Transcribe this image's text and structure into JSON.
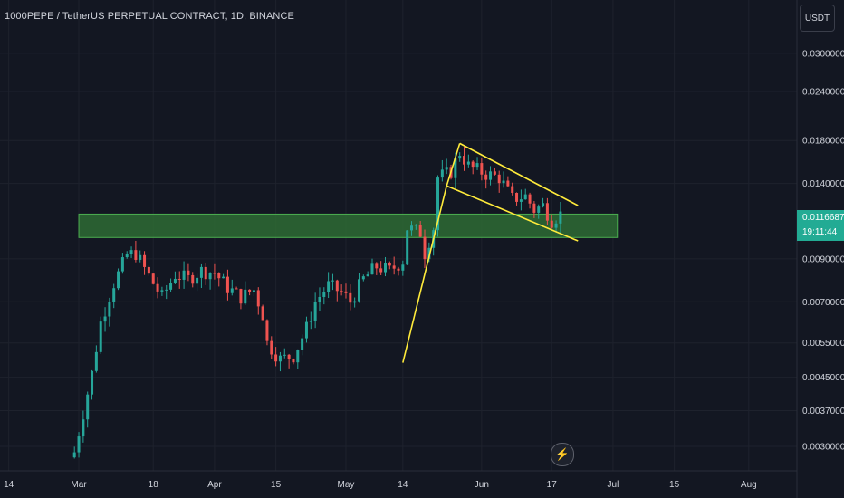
{
  "header": {
    "title": "1000PEPE / TetherUS PERPETUAL CONTRACT, 1D, BINANCE",
    "currency_button": "USDT"
  },
  "last_price": {
    "value": "0.0116687",
    "countdown": "19:11:44"
  },
  "colors": {
    "background": "#131722",
    "up": "#26a69a",
    "down": "#ef5350",
    "zone_fill": "#2e6b34",
    "zone_border": "#4caf50",
    "trendline": "#ffeb3b",
    "price_tag": "#22ab94",
    "text": "#d1d4dc"
  },
  "icons": {
    "replay": "lightning-icon"
  },
  "chart_data": {
    "type": "candlestick",
    "title": "1000PEPE / TetherUS PERPETUAL CONTRACT, 1D, BINANCE",
    "y_scale": "log",
    "ylim": [
      0.0026,
      0.041
    ],
    "xlim": [
      "2024-02-12",
      "2024-08-12"
    ],
    "y_ticks": [
      0.03,
      0.024,
      0.018,
      0.014,
      0.009,
      0.007,
      0.0055,
      0.0045,
      0.0037,
      0.003
    ],
    "y_tick_labels": [
      "0.0300000",
      "0.0240000",
      "0.0180000",
      "0.0140000",
      "0.0090000",
      "0.0070000",
      "0.0055000",
      "0.0045000",
      "0.0037000",
      "0.0030000"
    ],
    "x_ticks": [
      "2024-02-14",
      "2024-03-01",
      "2024-03-18",
      "2024-04-01",
      "2024-04-15",
      "2024-05-01",
      "2024-05-14",
      "2024-06-01",
      "2024-06-17",
      "2024-07-01",
      "2024-07-15",
      "2024-08-01"
    ],
    "x_tick_labels": [
      "14",
      "Mar",
      "18",
      "Apr",
      "15",
      "May",
      "14",
      "Jun",
      "17",
      "Jul",
      "15",
      "Aug"
    ],
    "anchors": [
      [
        "2024-02-29",
        0.0029
      ],
      [
        "2024-03-04",
        0.0046
      ],
      [
        "2024-03-06",
        0.0062
      ],
      [
        "2024-03-09",
        0.0078
      ],
      [
        "2024-03-12",
        0.0092
      ],
      [
        "2024-03-14",
        0.0093
      ],
      [
        "2024-03-16",
        0.0085
      ],
      [
        "2024-03-18",
        0.0078
      ],
      [
        "2024-03-20",
        0.0072
      ],
      [
        "2024-03-23",
        0.0082
      ],
      [
        "2024-03-26",
        0.008
      ],
      [
        "2024-03-29",
        0.0084
      ],
      [
        "2024-04-01",
        0.0083
      ],
      [
        "2024-04-04",
        0.0076
      ],
      [
        "2024-04-07",
        0.0072
      ],
      [
        "2024-04-10",
        0.0075
      ],
      [
        "2024-04-12",
        0.0065
      ],
      [
        "2024-04-13",
        0.0055
      ],
      [
        "2024-04-16",
        0.005
      ],
      [
        "2024-04-19",
        0.0051
      ],
      [
        "2024-04-22",
        0.006
      ],
      [
        "2024-04-24",
        0.007
      ],
      [
        "2024-04-27",
        0.0077
      ],
      [
        "2024-04-30",
        0.0074
      ],
      [
        "2024-05-02",
        0.007
      ],
      [
        "2024-05-05",
        0.008
      ],
      [
        "2024-05-08",
        0.0086
      ],
      [
        "2024-05-11",
        0.0084
      ],
      [
        "2024-05-14",
        0.0089
      ],
      [
        "2024-05-15",
        0.0108
      ],
      [
        "2024-05-18",
        0.0105
      ],
      [
        "2024-05-19",
        0.0093
      ],
      [
        "2024-05-21",
        0.0108
      ],
      [
        "2024-05-22",
        0.0145
      ],
      [
        "2024-05-25",
        0.015
      ],
      [
        "2024-05-27",
        0.0168
      ],
      [
        "2024-05-29",
        0.0155
      ],
      [
        "2024-06-02",
        0.0148
      ],
      [
        "2024-06-05",
        0.0145
      ],
      [
        "2024-06-08",
        0.0128
      ],
      [
        "2024-06-11",
        0.013
      ],
      [
        "2024-06-13",
        0.012
      ],
      [
        "2024-06-15",
        0.0123
      ],
      [
        "2024-06-17",
        0.0113
      ],
      [
        "2024-06-19",
        0.0117
      ]
    ],
    "support_zone": {
      "y_low": 0.0102,
      "y_high": 0.0117,
      "x_from": "2024-03-01",
      "x_to": "2024-07-02"
    },
    "trendlines": [
      {
        "from": [
          "2024-05-14",
          0.0049
        ],
        "to": [
          "2024-05-24",
          0.0138
        ]
      },
      {
        "from": [
          "2024-05-24",
          0.0138
        ],
        "to": [
          "2024-05-27",
          0.0177
        ]
      },
      {
        "from": [
          "2024-05-27",
          0.0177
        ],
        "to": [
          "2024-06-23",
          0.0123
        ]
      },
      {
        "from": [
          "2024-05-24",
          0.0138
        ],
        "to": [
          "2024-06-23",
          0.01
        ]
      }
    ]
  }
}
